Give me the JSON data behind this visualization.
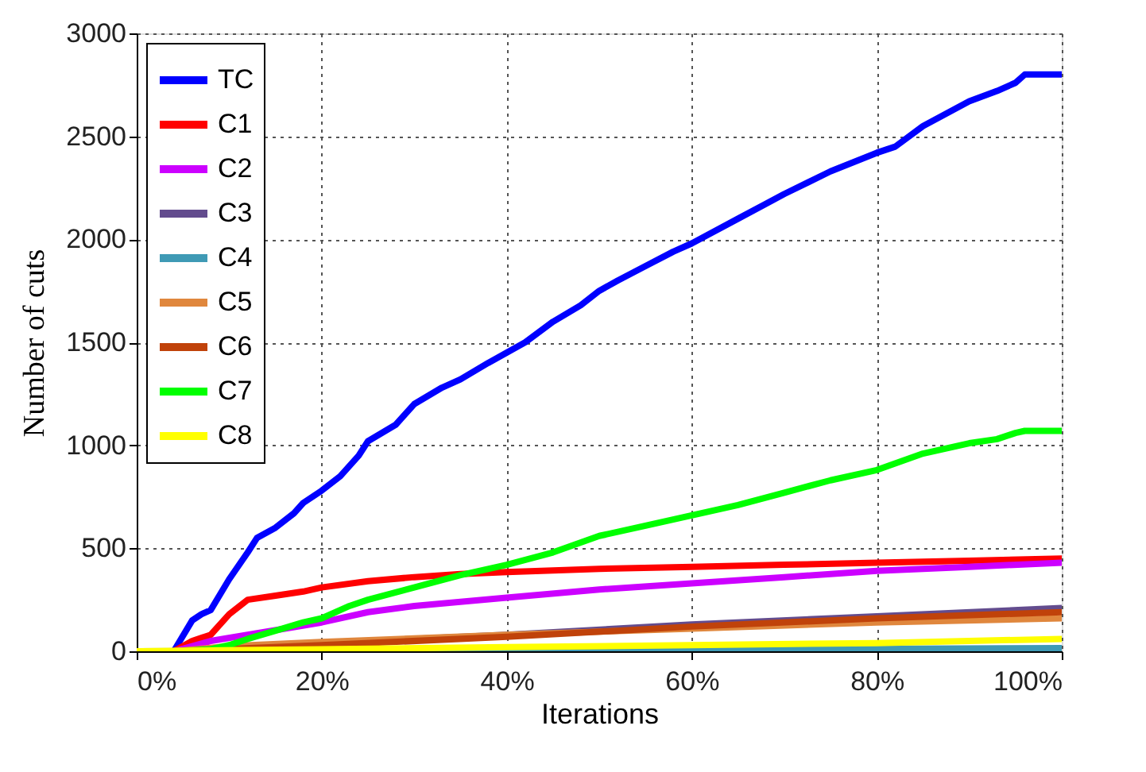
{
  "chart_data": {
    "type": "line",
    "xlabel": "Iterations",
    "ylabel": "Number of cuts",
    "xlim": [
      0,
      100
    ],
    "ylim": [
      0,
      3000
    ],
    "xticks": [
      {
        "value": 0,
        "label": "0%"
      },
      {
        "value": 20,
        "label": "20%"
      },
      {
        "value": 40,
        "label": "40%"
      },
      {
        "value": 60,
        "label": "60%"
      },
      {
        "value": 80,
        "label": "80%"
      },
      {
        "value": 100,
        "label": "100%"
      }
    ],
    "yticks": [
      0,
      500,
      1000,
      1500,
      2000,
      2500,
      3000
    ],
    "grid": true,
    "legend": "top left",
    "marker": "none",
    "line_style": "solid",
    "series": [
      {
        "name": "TC",
        "color": "#0000ff",
        "x": [
          0,
          4,
          6,
          7,
          8,
          10,
          12,
          13,
          15,
          17,
          18,
          20,
          22,
          24,
          25,
          28,
          30,
          33,
          35,
          38,
          40,
          42,
          45,
          48,
          50,
          52,
          55,
          58,
          60,
          65,
          70,
          75,
          80,
          82,
          85,
          90,
          93,
          95,
          96,
          100
        ],
        "values": [
          0,
          0,
          150,
          180,
          200,
          350,
          480,
          550,
          600,
          670,
          720,
          780,
          850,
          950,
          1020,
          1100,
          1200,
          1280,
          1320,
          1400,
          1450,
          1500,
          1600,
          1680,
          1750,
          1800,
          1870,
          1940,
          1980,
          2100,
          2220,
          2330,
          2420,
          2450,
          2550,
          2670,
          2720,
          2760,
          2800,
          2800
        ]
      },
      {
        "name": "C1",
        "color": "#ff0000",
        "x": [
          0,
          4,
          6,
          8,
          10,
          12,
          15,
          18,
          20,
          25,
          30,
          35,
          40,
          50,
          60,
          70,
          80,
          90,
          100
        ],
        "values": [
          0,
          0,
          50,
          80,
          180,
          250,
          270,
          290,
          310,
          340,
          360,
          375,
          385,
          400,
          410,
          420,
          430,
          440,
          450
        ]
      },
      {
        "name": "C2",
        "color": "#cc00ff",
        "x": [
          0,
          4,
          8,
          12,
          16,
          20,
          25,
          30,
          40,
          50,
          60,
          70,
          80,
          90,
          100
        ],
        "values": [
          0,
          0,
          50,
          80,
          110,
          140,
          190,
          220,
          260,
          300,
          330,
          360,
          390,
          410,
          430
        ]
      },
      {
        "name": "C3",
        "color": "#634c8e",
        "x": [
          20,
          40,
          60,
          80,
          100
        ],
        "values": [
          40,
          80,
          130,
          170,
          210
        ]
      },
      {
        "name": "C4",
        "color": "#3f9ab5",
        "x": [
          0,
          100
        ],
        "values": [
          0,
          15
        ]
      },
      {
        "name": "C5",
        "color": "#e0873d",
        "x": [
          0,
          4,
          10,
          20,
          40,
          60,
          80,
          100
        ],
        "values": [
          0,
          0,
          25,
          45,
          80,
          110,
          140,
          160
        ]
      },
      {
        "name": "C6",
        "color": "#c0420a",
        "x": [
          0,
          4,
          20,
          40,
          60,
          80,
          100
        ],
        "values": [
          0,
          0,
          30,
          70,
          120,
          160,
          190
        ]
      },
      {
        "name": "C7",
        "color": "#00ff00",
        "x": [
          0,
          5,
          8,
          10,
          12,
          15,
          18,
          20,
          23,
          25,
          30,
          35,
          40,
          45,
          50,
          55,
          60,
          65,
          70,
          75,
          80,
          85,
          90,
          93,
          95,
          96,
          100
        ],
        "values": [
          0,
          0,
          10,
          30,
          60,
          100,
          140,
          160,
          220,
          250,
          310,
          370,
          420,
          480,
          560,
          610,
          660,
          710,
          770,
          830,
          880,
          960,
          1010,
          1030,
          1060,
          1070,
          1070
        ]
      },
      {
        "name": "C8",
        "color": "#ffff00",
        "x": [
          0,
          20,
          40,
          60,
          80,
          100
        ],
        "values": [
          0,
          10,
          20,
          30,
          40,
          60
        ]
      }
    ]
  }
}
